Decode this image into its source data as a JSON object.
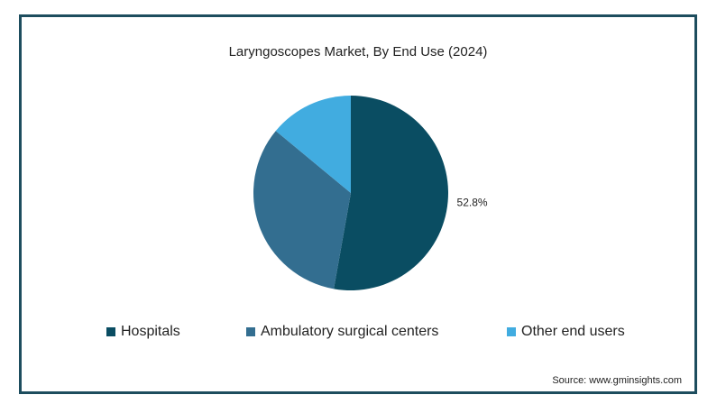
{
  "chart_data": {
    "type": "pie",
    "title": "Laryngoscopes Market, By End Use (2024)",
    "categories": [
      "Hospitals",
      "Ambulatory surgical centers",
      "Other end users"
    ],
    "values": [
      52.8,
      33.2,
      14.0
    ],
    "colors": [
      "#0a4d62",
      "#336e90",
      "#41ace0"
    ],
    "data_labels": [
      "52.8%",
      "",
      ""
    ],
    "legend_position": "bottom"
  },
  "source": "Source: www.gminsights.com"
}
